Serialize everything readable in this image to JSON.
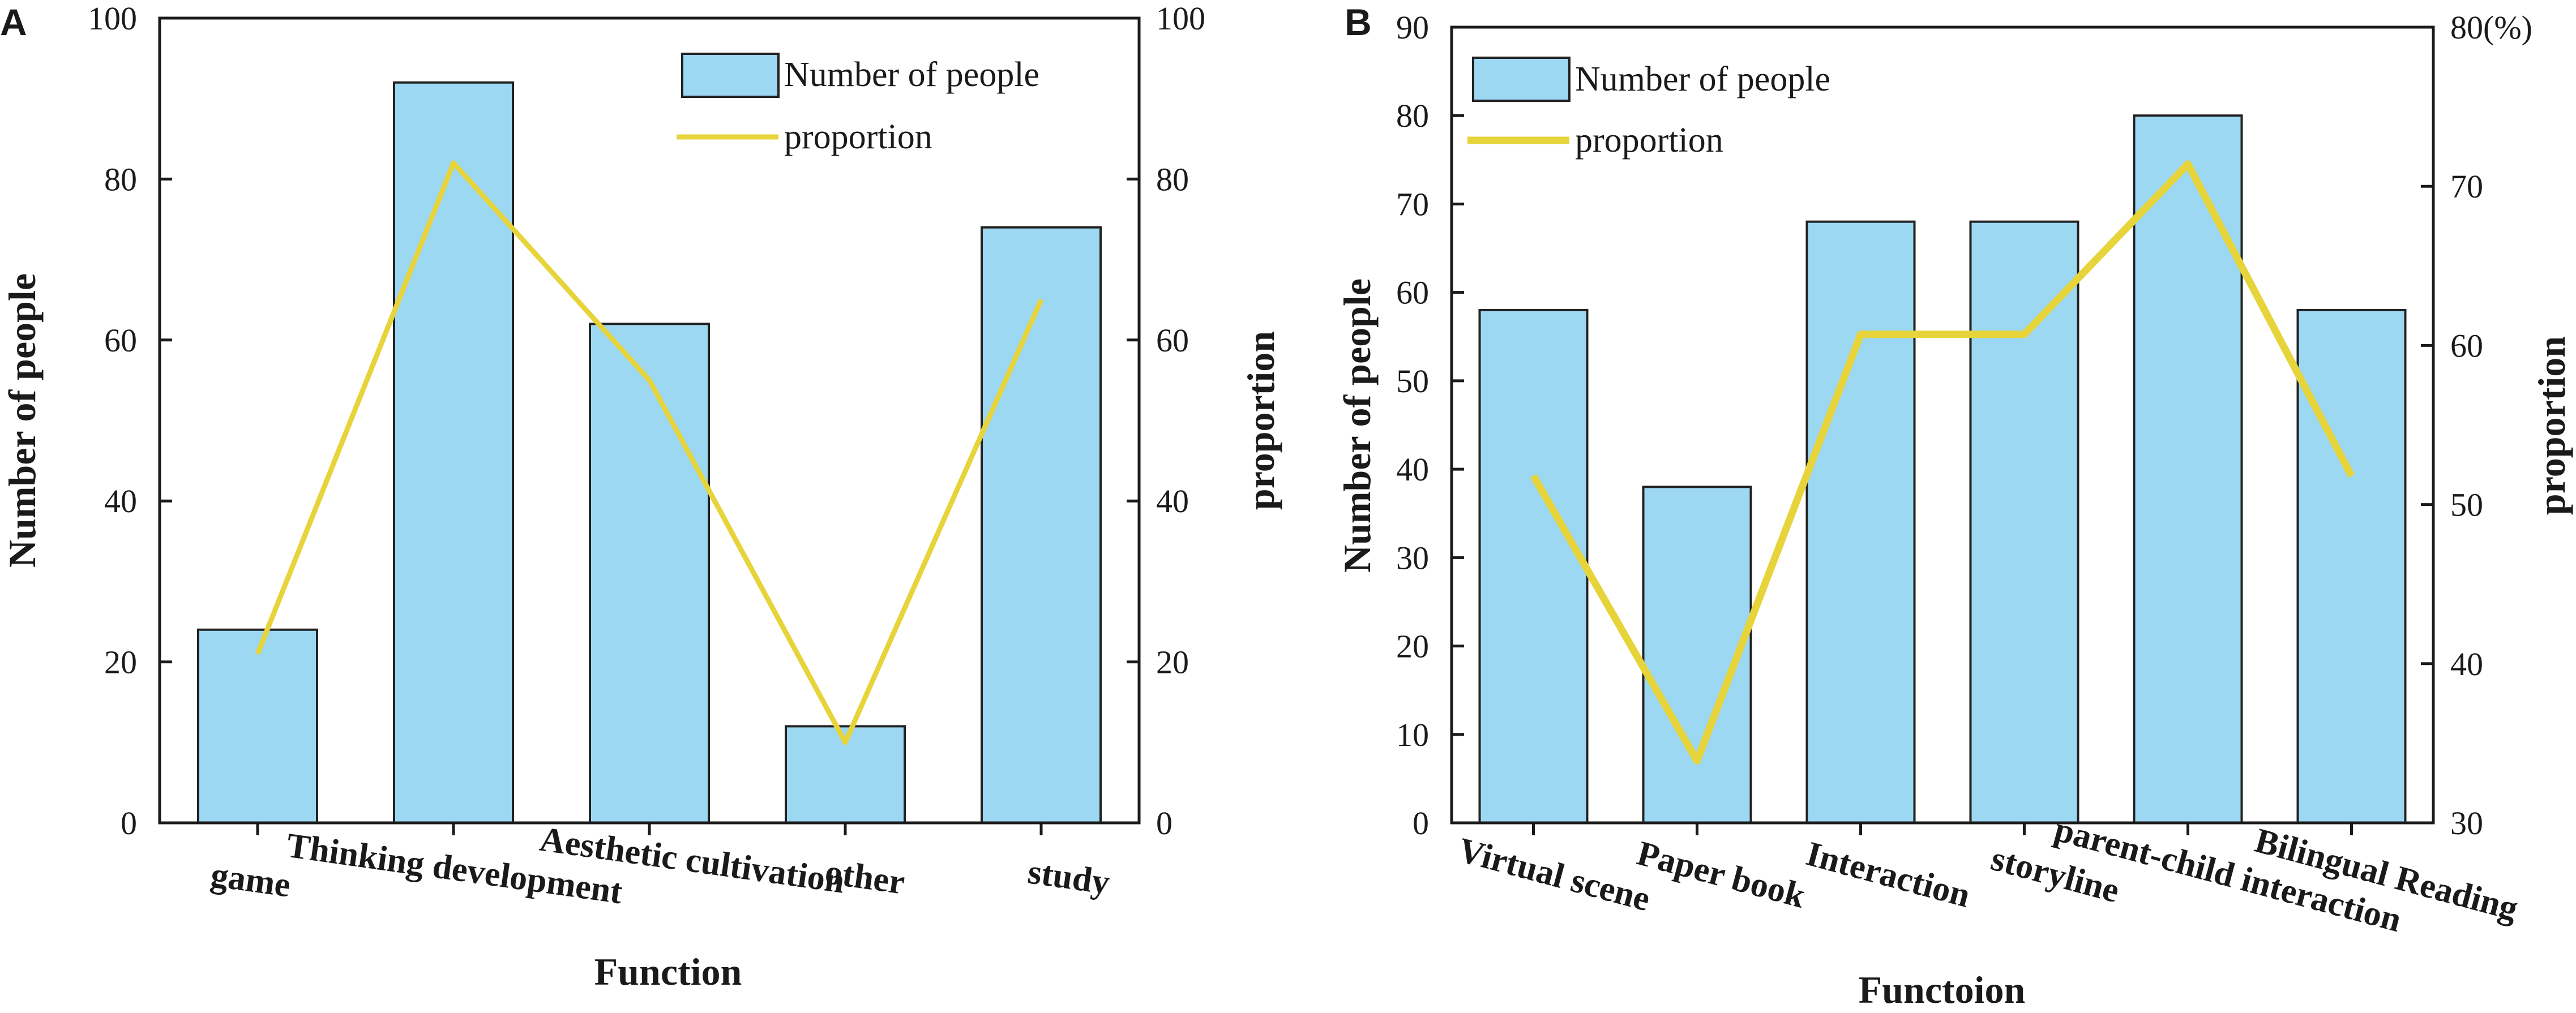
{
  "colors": {
    "bar_fill": "#9dd8f2",
    "bar_stroke": "#222222",
    "line": "#e6d43a",
    "axis": "#1a1a1a"
  },
  "chart_data": [
    {
      "panel": "A",
      "type": "bar",
      "categories": [
        "game",
        "Thinking development",
        "Aesthetic cultivation",
        "other",
        "study"
      ],
      "series": [
        {
          "name": "Number of people",
          "type": "bar",
          "axis": "left",
          "values": [
            24,
            92,
            62,
            12,
            74
          ]
        },
        {
          "name": "proportion",
          "type": "line",
          "axis": "right",
          "values": [
            21,
            82,
            55,
            10,
            65
          ]
        }
      ],
      "xlabel": "Function",
      "ylabel": "Number of people",
      "y2label": "proportion",
      "ylim": [
        0,
        100
      ],
      "y2lim": [
        0,
        100
      ],
      "yticks": [
        "0",
        "20",
        "40",
        "60",
        "80",
        "100"
      ],
      "y2ticks": [
        "0",
        "20",
        "40",
        "60",
        "80",
        "100"
      ],
      "legend": {
        "bar_label": "Number of people",
        "line_label": "proportion",
        "placement": "top-right"
      }
    },
    {
      "panel": "B",
      "type": "bar",
      "categories": [
        "Virtual scene",
        "Paper book",
        "Interaction",
        "storyline",
        "parent-child interaction",
        "Bilingual Reading"
      ],
      "series": [
        {
          "name": "Number of people",
          "type": "bar",
          "axis": "left",
          "values": [
            58,
            38,
            68,
            68,
            80,
            58
          ]
        },
        {
          "name": "proportion",
          "type": "line",
          "axis": "right",
          "values": [
            51.8,
            33.9,
            60.7,
            60.7,
            71.4,
            51.8
          ]
        }
      ],
      "xlabel": "Functoion",
      "ylabel": "Number of people",
      "y2label": "proportion",
      "ylim": [
        0,
        90
      ],
      "y2lim": [
        30,
        80
      ],
      "yticks": [
        "0",
        "10",
        "20",
        "30",
        "40",
        "50",
        "60",
        "70",
        "80",
        "90"
      ],
      "y2ticks": [
        "30",
        "40",
        "50",
        "60",
        "70",
        "80(%)"
      ],
      "legend": {
        "bar_label": "Number of people",
        "line_label": "proportion",
        "placement": "top-left"
      }
    }
  ]
}
